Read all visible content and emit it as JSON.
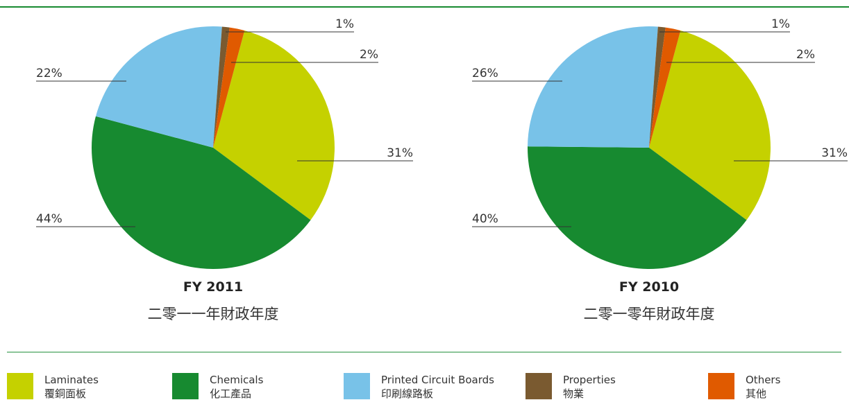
{
  "chart_data": [
    {
      "type": "pie",
      "title": "FY 2011",
      "subtitle": "二零一一年財政年度",
      "values": [
        31,
        44,
        22,
        1,
        2
      ],
      "value_labels": [
        "31%",
        "44%",
        "22%",
        "1%",
        "2%"
      ]
    },
    {
      "type": "pie",
      "title": "FY 2010",
      "subtitle": "二零一零年財政年度",
      "values": [
        31,
        40,
        26,
        1,
        2
      ],
      "value_labels": [
        "31%",
        "40%",
        "26%",
        "1%",
        "2%"
      ]
    }
  ],
  "legend": [
    {
      "name": "Laminates",
      "name_zh": "覆銅面板",
      "color": "#c5d100"
    },
    {
      "name": "Chemicals",
      "name_zh": "化工產品",
      "color": "#178a30"
    },
    {
      "name": "Printed Circuit Boards",
      "name_zh": "印刷線路板",
      "color": "#78c2e8"
    },
    {
      "name": "Properties",
      "name_zh": "物業",
      "color": "#7a5a30"
    },
    {
      "name": "Others",
      "name_zh": "其他",
      "color": "#e05a00"
    }
  ]
}
